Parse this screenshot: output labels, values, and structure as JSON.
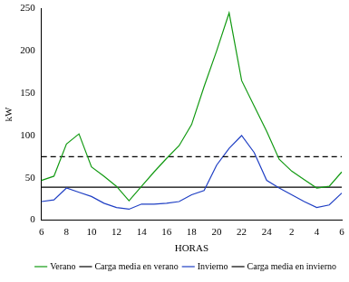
{
  "chart_data": {
    "type": "line",
    "x_label": "HORAS",
    "y_label": "kW",
    "categories": [
      "6",
      null,
      "8",
      null,
      "10",
      null,
      "12",
      null,
      "14",
      null,
      "16",
      null,
      "18",
      null,
      "20",
      null,
      "22",
      null,
      "24",
      null,
      "2",
      null,
      "4",
      null,
      "6"
    ],
    "series": [
      {
        "name": "Verano",
        "color": "#129a12",
        "line_style": "solid",
        "values": [
          47,
          52,
          90,
          102,
          63,
          52,
          40,
          23,
          40,
          57,
          73,
          88,
          113,
          158,
          200,
          245,
          165,
          135,
          105,
          72,
          58,
          48,
          38,
          40,
          57
        ]
      },
      {
        "name": "Carga media en verano",
        "color": "#000000",
        "line_style": "dashed",
        "values": [
          75,
          75,
          75,
          75,
          75,
          75,
          75,
          75,
          75,
          75,
          75,
          75,
          75,
          75,
          75,
          75,
          75,
          75,
          75,
          75,
          75,
          75,
          75,
          75,
          75
        ]
      },
      {
        "name": "Invierno",
        "color": "#1f3fc4",
        "line_style": "solid",
        "values": [
          22,
          24,
          38,
          33,
          28,
          20,
          15,
          13,
          19,
          19,
          20,
          22,
          30,
          35,
          65,
          85,
          100,
          80,
          47,
          38,
          30,
          22,
          15,
          18,
          32
        ]
      },
      {
        "name": "Carga media en invierno",
        "color": "#000000",
        "line_style": "solid",
        "values": [
          39,
          39,
          39,
          39,
          39,
          39,
          39,
          39,
          39,
          39,
          39,
          39,
          39,
          39,
          39,
          39,
          39,
          39,
          39,
          39,
          39,
          39,
          39,
          39,
          39
        ]
      }
    ],
    "ylim": [
      0,
      250
    ],
    "yticks": [
      0,
      50,
      100,
      150,
      200,
      250
    ],
    "grid": false,
    "legend": "bottom"
  }
}
